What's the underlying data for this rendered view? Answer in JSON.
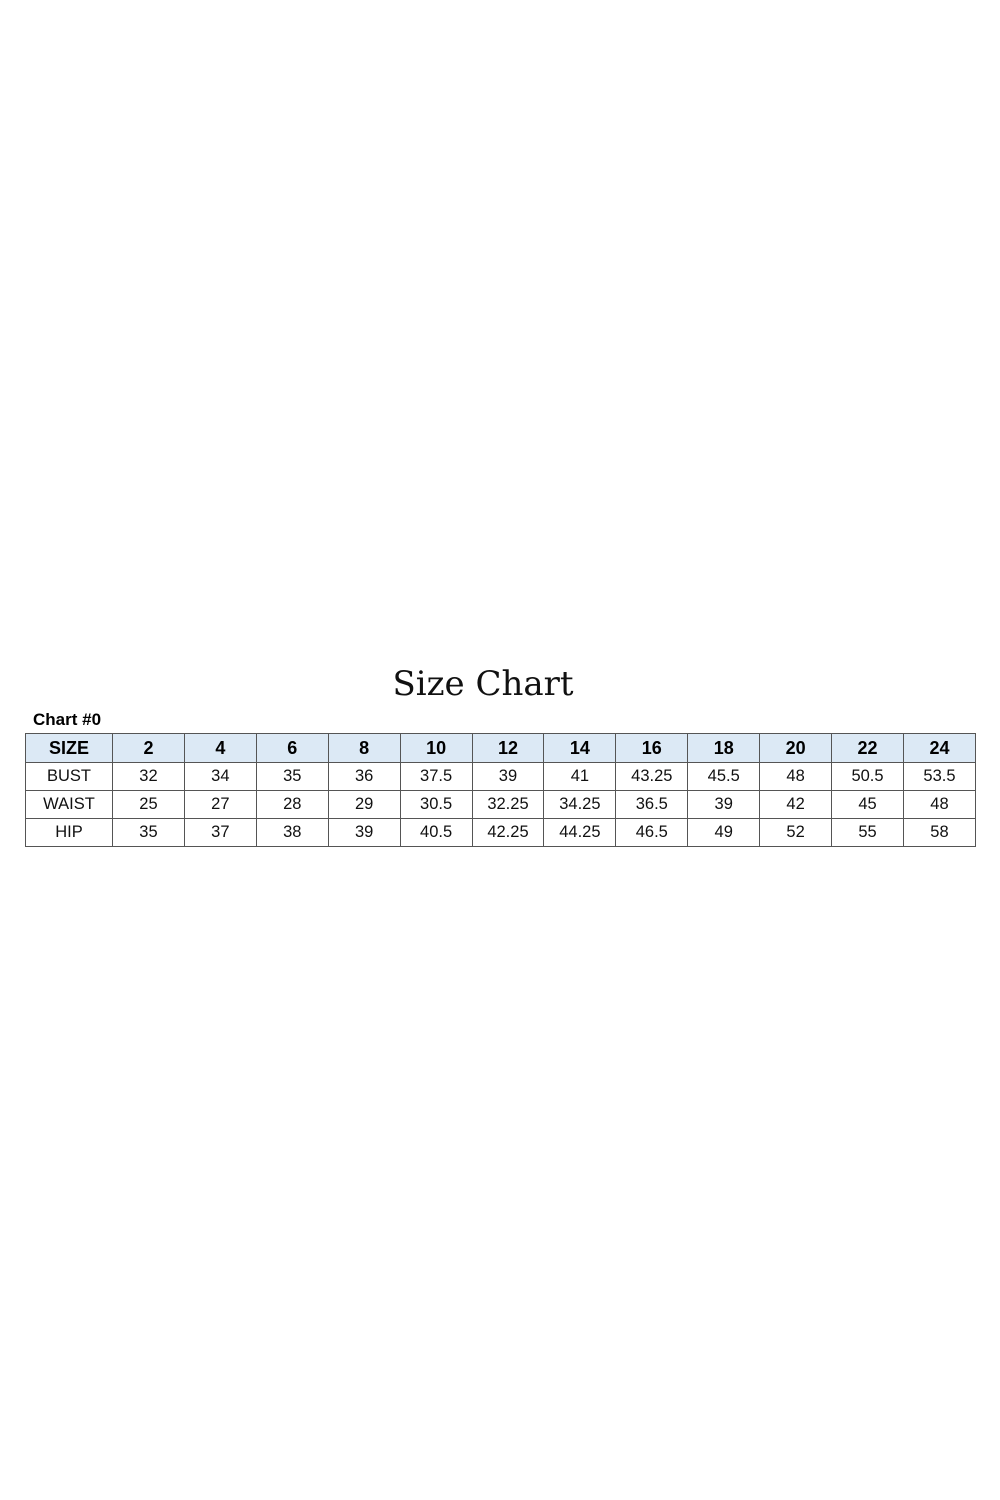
{
  "title": "Size Chart",
  "subtitle": "Chart #0",
  "colors": {
    "header_bg": "#dce9f5",
    "border": "#555555"
  },
  "table": {
    "headers": [
      "SIZE",
      "2",
      "4",
      "6",
      "8",
      "10",
      "12",
      "14",
      "16",
      "18",
      "20",
      "22",
      "24"
    ],
    "rows": [
      [
        "BUST",
        "32",
        "34",
        "35",
        "36",
        "37.5",
        "39",
        "41",
        "43.25",
        "45.5",
        "48",
        "50.5",
        "53.5"
      ],
      [
        "WAIST",
        "25",
        "27",
        "28",
        "29",
        "30.5",
        "32.25",
        "34.25",
        "36.5",
        "39",
        "42",
        "45",
        "48"
      ],
      [
        "HIP",
        "35",
        "37",
        "38",
        "39",
        "40.5",
        "42.25",
        "44.25",
        "46.5",
        "49",
        "52",
        "55",
        "58"
      ]
    ]
  }
}
